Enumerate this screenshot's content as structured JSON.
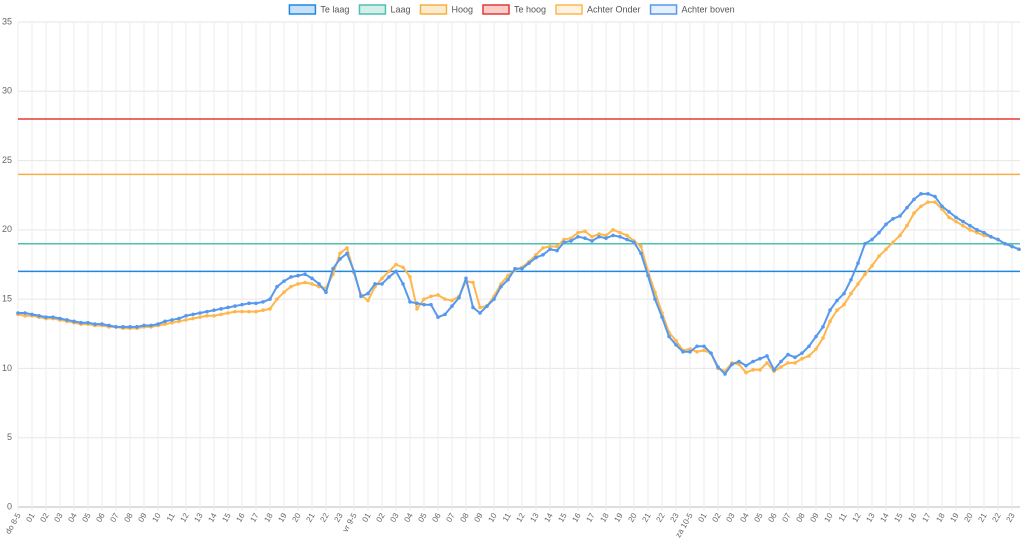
{
  "chart_data": {
    "type": "line",
    "categories": [
      "do 8-5",
      null,
      "01",
      null,
      "02",
      null,
      "03",
      null,
      "04",
      null,
      "05",
      null,
      "06",
      null,
      "07",
      null,
      "08",
      null,
      "09",
      null,
      "10",
      null,
      "11",
      null,
      "12",
      null,
      "13",
      null,
      "14",
      null,
      "15",
      null,
      "16",
      null,
      "17",
      null,
      "18",
      null,
      "19",
      null,
      "20",
      null,
      "21",
      null,
      "22",
      null,
      "23",
      null,
      "vr 9-5",
      null,
      "01",
      null,
      "02",
      null,
      "03",
      null,
      "04",
      null,
      "05",
      null,
      "06",
      null,
      "07",
      null,
      "08",
      null,
      "09",
      null,
      "10",
      null,
      "11",
      null,
      "12",
      null,
      "13",
      null,
      "14",
      null,
      "15",
      null,
      "16",
      null,
      "17",
      null,
      "18",
      null,
      "19",
      null,
      "20",
      null,
      "21",
      null,
      "22",
      null,
      "23",
      null,
      "za 10-5",
      null,
      "01",
      null,
      "02",
      null,
      "03",
      null,
      "04",
      null,
      "05",
      null,
      "06",
      null,
      "07",
      null,
      "08",
      null,
      "09",
      null,
      "10",
      null,
      "11",
      null,
      "12",
      null,
      "13",
      null,
      "14",
      null,
      "15",
      null,
      "16",
      null,
      "17",
      null,
      "18",
      null,
      "19",
      null,
      "20",
      null,
      "21",
      null,
      "22",
      null,
      "23",
      null
    ],
    "thresholds": [
      {
        "name": "Te laag",
        "color": "#1e88e5",
        "value": 17
      },
      {
        "name": "Laag",
        "color": "#4fc1b0",
        "value": 19
      },
      {
        "name": "Hoog",
        "color": "#f5b041",
        "value": 24
      },
      {
        "name": "Te hoog",
        "color": "#e53935",
        "value": 28
      }
    ],
    "series": [
      {
        "name": "Achter Onder",
        "color": "#ffb74d",
        "values": [
          13.9,
          13.8,
          13.8,
          13.7,
          13.6,
          13.6,
          13.5,
          13.4,
          13.3,
          13.2,
          13.2,
          13.1,
          13.1,
          13.0,
          13.0,
          12.9,
          12.9,
          12.9,
          13.0,
          13.0,
          13.1,
          13.2,
          13.3,
          13.4,
          13.5,
          13.6,
          13.7,
          13.8,
          13.8,
          13.9,
          14.0,
          14.1,
          14.1,
          14.1,
          14.1,
          14.2,
          14.3,
          15.0,
          15.5,
          15.9,
          16.1,
          16.2,
          16.1,
          15.9,
          15.8,
          16.8,
          18.3,
          18.7,
          16.9,
          15.3,
          14.9,
          15.9,
          16.5,
          17.0,
          17.5,
          17.3,
          16.6,
          14.3,
          15.0,
          15.2,
          15.3,
          15.0,
          14.9,
          15.2,
          16.3,
          16.2,
          14.4,
          14.5,
          15.2,
          16.1,
          16.7,
          17.1,
          17.3,
          17.7,
          18.2,
          18.7,
          18.8,
          18.8,
          19.3,
          19.4,
          19.8,
          19.9,
          19.5,
          19.7,
          19.6,
          20.0,
          19.8,
          19.6,
          19.2,
          18.8,
          17.0,
          15.5,
          14.0,
          12.6,
          12.0,
          11.3,
          11.4,
          11.2,
          11.3,
          11.1,
          10.0,
          9.8,
          10.4,
          10.3,
          9.7,
          9.9,
          9.9,
          10.4,
          9.8,
          10.1,
          10.4,
          10.4,
          10.7,
          10.9,
          11.4,
          12.2,
          13.4,
          14.2,
          14.6,
          15.4,
          16.1,
          16.8,
          17.4,
          18.1,
          18.6,
          19.1,
          19.6,
          20.3,
          21.2,
          21.7,
          22.0,
          22.0,
          21.5,
          20.9,
          20.6,
          20.3,
          20.0,
          19.8,
          19.6,
          19.5,
          19.3,
          19.0,
          18.8,
          18.6
        ]
      },
      {
        "name": "Achter boven",
        "color": "#5599ee",
        "values": [
          14.0,
          14.0,
          13.9,
          13.8,
          13.7,
          13.7,
          13.6,
          13.5,
          13.4,
          13.3,
          13.3,
          13.2,
          13.2,
          13.1,
          13.0,
          13.0,
          13.0,
          13.0,
          13.1,
          13.1,
          13.2,
          13.4,
          13.5,
          13.6,
          13.8,
          13.9,
          14.0,
          14.1,
          14.2,
          14.3,
          14.4,
          14.5,
          14.6,
          14.7,
          14.7,
          14.8,
          15.0,
          15.9,
          16.3,
          16.6,
          16.7,
          16.8,
          16.5,
          16.1,
          15.5,
          17.2,
          17.9,
          18.3,
          17.0,
          15.2,
          15.4,
          16.1,
          16.1,
          16.6,
          17.0,
          16.1,
          14.8,
          14.7,
          14.6,
          14.6,
          13.7,
          13.9,
          14.5,
          15.1,
          16.5,
          14.4,
          14.0,
          14.5,
          15.0,
          15.9,
          16.4,
          17.2,
          17.2,
          17.6,
          18.0,
          18.2,
          18.6,
          18.5,
          19.1,
          19.2,
          19.5,
          19.4,
          19.2,
          19.5,
          19.4,
          19.6,
          19.5,
          19.3,
          19.1,
          18.3,
          16.7,
          15.0,
          13.7,
          12.3,
          11.7,
          11.2,
          11.2,
          11.6,
          11.6,
          11.1,
          10.1,
          9.6,
          10.3,
          10.5,
          10.2,
          10.5,
          10.7,
          10.9,
          9.9,
          10.5,
          11.0,
          10.8,
          11.1,
          11.6,
          12.3,
          13.0,
          14.2,
          14.9,
          15.4,
          16.4,
          17.6,
          19.0,
          19.3,
          19.8,
          20.4,
          20.8,
          21.0,
          21.6,
          22.2,
          22.6,
          22.6,
          22.4,
          21.7,
          21.3,
          20.9,
          20.6,
          20.3,
          20.0,
          19.8,
          19.5,
          19.3,
          19.0,
          18.8,
          18.6
        ]
      }
    ],
    "ylim": [
      0,
      35
    ],
    "yticks": [
      0,
      5,
      10,
      15,
      20,
      25,
      30,
      35
    ],
    "grid": true
  }
}
